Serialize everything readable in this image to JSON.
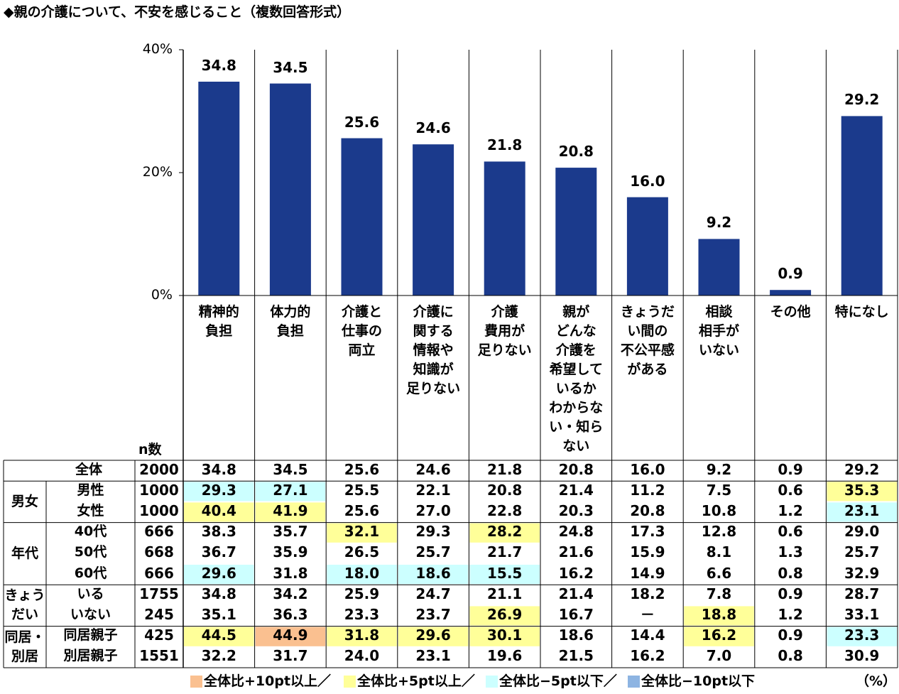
{
  "chart_data": {
    "type": "bar",
    "title": "◆親の介護について、不安を感じること（複数回答形式）",
    "categories": [
      "精神的\n負担",
      "体力的\n負担",
      "介護と\n仕事の\n両立",
      "介護に\n関する\n情報や\n知識が\n足りない",
      "介護\n費用が\n足りない",
      "親が\nどんな\n介護を\n希望して\nいるか\nわからな\nい・知ら\nない",
      "きょうだ\nい間の\n不公平感\nがある",
      "相談\n相手が\nいない",
      "その他",
      "特になし"
    ],
    "values": [
      34.8,
      34.5,
      25.6,
      24.6,
      21.8,
      20.8,
      16.0,
      9.2,
      0.9,
      29.2
    ],
    "value_labels": [
      "34.8",
      "34.5",
      "25.6",
      "24.6",
      "21.8",
      "20.8",
      "16.0",
      "9.2",
      "0.9",
      "29.2"
    ],
    "color": "#1b3a8c",
    "ylim": [
      0,
      40
    ],
    "yticks": [
      {
        "value": 0,
        "label": "0%"
      },
      {
        "value": 20,
        "label": "20%"
      },
      {
        "value": 40,
        "label": "40%"
      }
    ]
  },
  "table": {
    "n_header": "n数",
    "total": {
      "label": "全体",
      "n": "2000",
      "values": [
        "34.8",
        "34.5",
        "25.6",
        "24.6",
        "21.8",
        "20.8",
        "16.0",
        "9.2",
        "0.9",
        "29.2"
      ],
      "colors": [
        null,
        null,
        null,
        null,
        null,
        null,
        null,
        null,
        null,
        null
      ]
    },
    "groups": [
      {
        "label": "男女",
        "rows": [
          {
            "label": "男性",
            "n": "1000",
            "values": [
              "29.3",
              "27.1",
              "25.5",
              "22.1",
              "20.8",
              "21.4",
              "11.2",
              "7.5",
              "0.6",
              "35.3"
            ],
            "colors": [
              "#ccffff",
              "#ccffff",
              null,
              null,
              null,
              null,
              null,
              null,
              null,
              "#ffff99"
            ]
          },
          {
            "label": "女性",
            "n": "1000",
            "values": [
              "40.4",
              "41.9",
              "25.6",
              "27.0",
              "22.8",
              "20.3",
              "20.8",
              "10.8",
              "1.2",
              "23.1"
            ],
            "colors": [
              "#ffff99",
              "#ffff99",
              null,
              null,
              null,
              null,
              null,
              null,
              null,
              "#ccffff"
            ]
          }
        ]
      },
      {
        "label": "年代",
        "rows": [
          {
            "label": "40代",
            "n": "666",
            "values": [
              "38.3",
              "35.7",
              "32.1",
              "29.3",
              "28.2",
              "24.8",
              "17.3",
              "12.8",
              "0.6",
              "29.0"
            ],
            "colors": [
              null,
              null,
              "#ffff99",
              null,
              "#ffff99",
              null,
              null,
              null,
              null,
              null
            ]
          },
          {
            "label": "50代",
            "n": "668",
            "values": [
              "36.7",
              "35.9",
              "26.5",
              "25.7",
              "21.7",
              "21.6",
              "15.9",
              "8.1",
              "1.3",
              "25.7"
            ],
            "colors": [
              null,
              null,
              null,
              null,
              null,
              null,
              null,
              null,
              null,
              null
            ]
          },
          {
            "label": "60代",
            "n": "666",
            "values": [
              "29.6",
              "31.8",
              "18.0",
              "18.6",
              "15.5",
              "16.2",
              "14.9",
              "6.6",
              "0.8",
              "32.9"
            ],
            "colors": [
              "#ccffff",
              null,
              "#ccffff",
              "#ccffff",
              "#ccffff",
              null,
              null,
              null,
              null,
              null
            ]
          }
        ]
      },
      {
        "label": "きょう\nだい",
        "rows": [
          {
            "label": "いる",
            "n": "1755",
            "values": [
              "34.8",
              "34.2",
              "25.9",
              "24.7",
              "21.1",
              "21.4",
              "18.2",
              "7.8",
              "0.9",
              "28.7"
            ],
            "colors": [
              null,
              null,
              null,
              null,
              null,
              null,
              null,
              null,
              null,
              null
            ]
          },
          {
            "label": "いない",
            "n": "245",
            "values": [
              "35.1",
              "36.3",
              "23.3",
              "23.7",
              "26.9",
              "16.7",
              "－",
              "18.8",
              "1.2",
              "33.1"
            ],
            "colors": [
              null,
              null,
              null,
              null,
              "#ffff99",
              null,
              null,
              "#ffff99",
              null,
              null
            ]
          }
        ]
      },
      {
        "label": "同居・\n別居",
        "rows": [
          {
            "label": "同居親子",
            "n": "425",
            "values": [
              "44.5",
              "44.9",
              "31.8",
              "29.6",
              "30.1",
              "18.6",
              "14.4",
              "16.2",
              "0.9",
              "23.3"
            ],
            "colors": [
              "#ffff99",
              "#fac090",
              "#ffff99",
              "#ffff99",
              "#ffff99",
              null,
              null,
              "#ffff99",
              null,
              "#ccffff"
            ]
          },
          {
            "label": "別居親子",
            "n": "1551",
            "values": [
              "32.2",
              "31.7",
              "24.0",
              "23.1",
              "19.6",
              "21.5",
              "16.2",
              "7.0",
              "0.8",
              "30.9"
            ],
            "colors": [
              null,
              null,
              null,
              null,
              null,
              null,
              null,
              null,
              null,
              null
            ]
          }
        ]
      }
    ]
  },
  "legend": {
    "items": [
      {
        "label": "全体比+10pt以上／",
        "color": "#fac090"
      },
      {
        "label": "全体比+5pt以上／",
        "color": "#ffff99"
      },
      {
        "label": "全体比−5pt以下／",
        "color": "#ccffff"
      },
      {
        "label": "全体比−10pt以下",
        "color": "#8db4e2"
      }
    ],
    "unit": "（%）"
  }
}
